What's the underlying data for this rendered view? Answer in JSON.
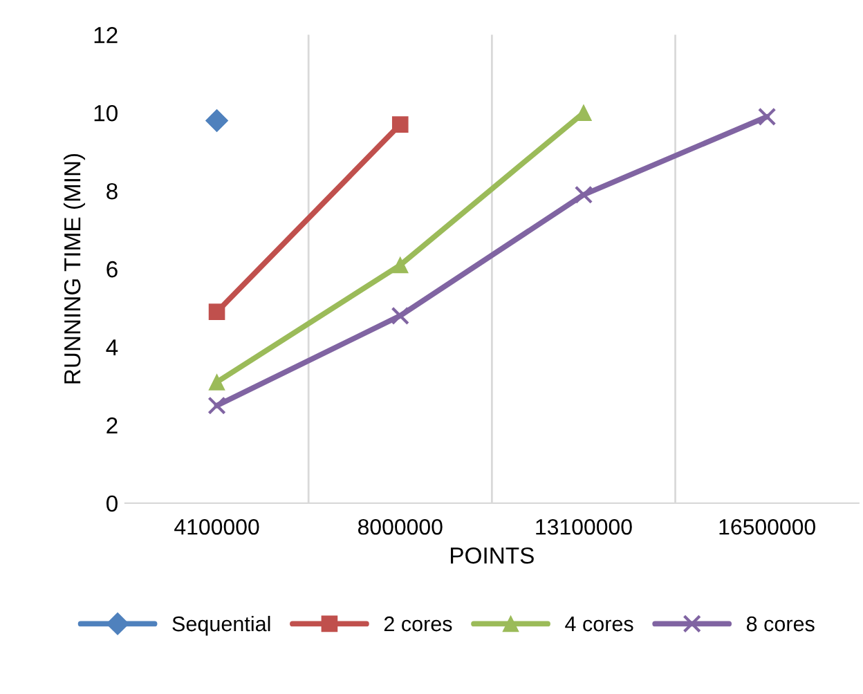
{
  "chart_data": {
    "type": "line",
    "xlabel": "POINTS",
    "ylabel": "RUNNING TIME (MIN)",
    "categories": [
      "4100000",
      "8000000",
      "13100000",
      "16500000"
    ],
    "series": [
      {
        "name": "Sequential",
        "color": "#4f81bd",
        "marker": "diamond",
        "values": [
          9.8,
          null,
          null,
          null
        ]
      },
      {
        "name": "2 cores",
        "color": "#c0504d",
        "marker": "square",
        "values": [
          4.9,
          9.7,
          null,
          null
        ]
      },
      {
        "name": "4 cores",
        "color": "#9bbb59",
        "marker": "triangle",
        "values": [
          3.1,
          6.1,
          10.0,
          null
        ]
      },
      {
        "name": "8 cores",
        "color": "#8064a2",
        "marker": "cross",
        "values": [
          2.5,
          4.8,
          7.9,
          9.9
        ]
      }
    ],
    "ylim": [
      0,
      12
    ],
    "yticks": [
      0,
      2,
      4,
      6,
      8,
      10,
      12
    ],
    "grid": "x",
    "legend": "bottom",
    "line_style": "solid"
  }
}
